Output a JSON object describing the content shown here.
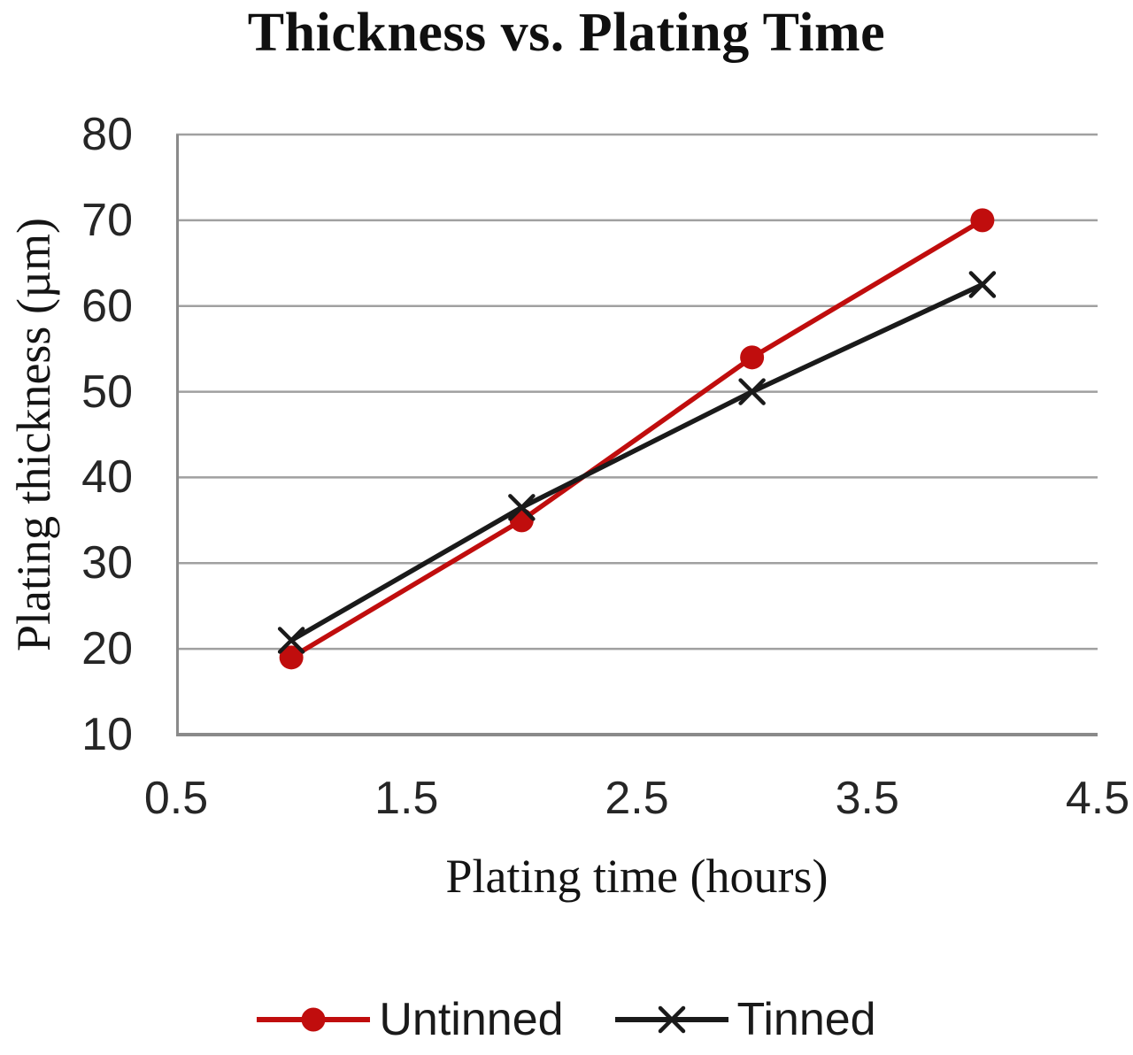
{
  "chart_data": {
    "type": "line",
    "title": "Thickness vs. Plating Time",
    "xlabel": "Plating time (hours)",
    "ylabel": "Plating thickness (µm)",
    "x": [
      1,
      2,
      3,
      4
    ],
    "series": [
      {
        "name": "Untinned",
        "marker": "circle",
        "color": "#c00d0d",
        "values": [
          19,
          35,
          54,
          70
        ]
      },
      {
        "name": "Tinned",
        "marker": "x",
        "color": "#1a1a1a",
        "values": [
          21,
          36.5,
          50,
          62.5
        ]
      }
    ],
    "xlim": [
      0.5,
      4.5
    ],
    "ylim": [
      10,
      80
    ],
    "xticks": [
      "0.5",
      "1.5",
      "2.5",
      "3.5",
      "4.5"
    ],
    "yticks": [
      "80",
      "70",
      "60",
      "50",
      "40",
      "30",
      "20",
      "10"
    ],
    "grid": "horizontal",
    "legend_position": "bottom"
  },
  "colors": {
    "background": "#ffffff",
    "gridline": "#a0a0a0",
    "axis_line": "#8a8a8a",
    "tick_text": "#262626",
    "title_text": "#101010"
  }
}
